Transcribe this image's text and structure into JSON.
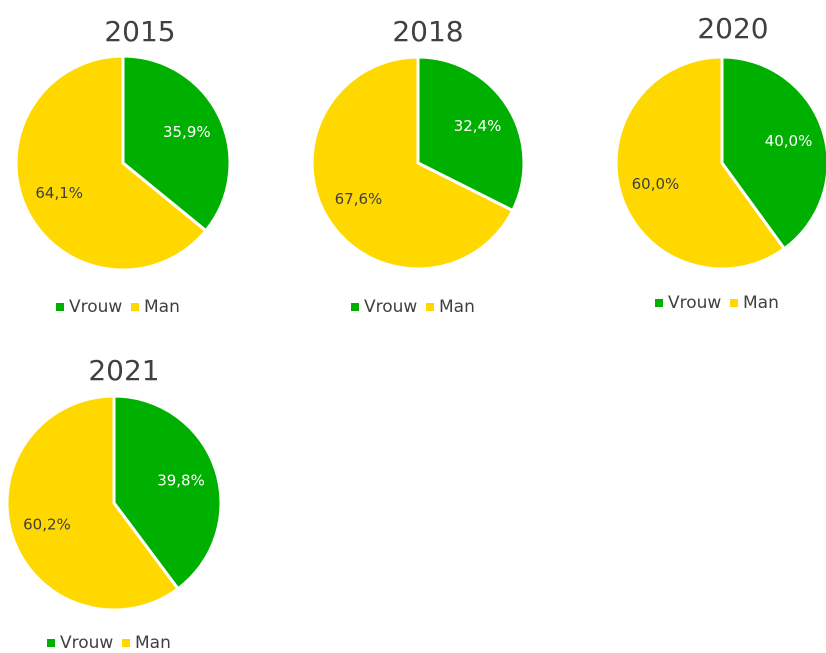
{
  "chart_data": [
    {
      "type": "pie",
      "title": "2015",
      "categories": [
        "Vrouw",
        "Man"
      ],
      "values": [
        35.9,
        64.1
      ],
      "value_labels": [
        "35,9%",
        "64,1%"
      ],
      "colors": [
        "#00b000",
        "#ffd800"
      ],
      "legend": "bottom"
    },
    {
      "type": "pie",
      "title": "2018",
      "categories": [
        "Vrouw",
        "Man"
      ],
      "values": [
        32.4,
        67.6
      ],
      "value_labels": [
        "32,4%",
        "67,6%"
      ],
      "colors": [
        "#00b000",
        "#ffd800"
      ],
      "legend": "bottom"
    },
    {
      "type": "pie",
      "title": "2020",
      "categories": [
        "Vrouw",
        "Man"
      ],
      "values": [
        40.0,
        60.0
      ],
      "value_labels": [
        "40,0%",
        "60,0%"
      ],
      "colors": [
        "#00b000",
        "#ffd800"
      ],
      "legend": "bottom"
    },
    {
      "type": "pie",
      "title": "2021",
      "categories": [
        "Vrouw",
        "Man"
      ],
      "values": [
        39.8,
        60.2
      ],
      "value_labels": [
        "39,8%",
        "60,2%"
      ],
      "colors": [
        "#00b000",
        "#ffd800"
      ],
      "legend": "bottom"
    }
  ]
}
